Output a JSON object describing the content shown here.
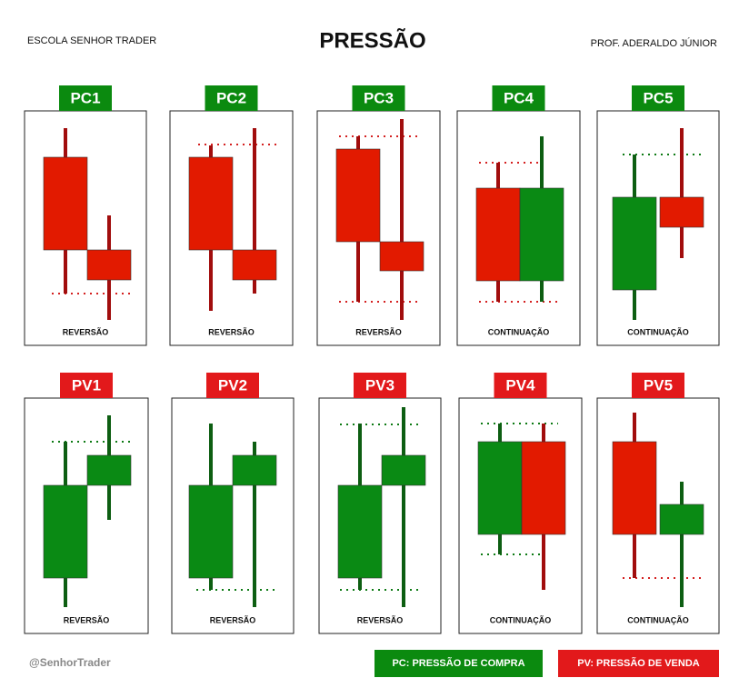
{
  "header": {
    "left": "ESCOLA SENHOR TRADER",
    "title": "PRESSÃO",
    "right": "PROF. ADERALDO JÚNIOR"
  },
  "panels": [
    {
      "label": "PC1",
      "caption": "REVERSÃO"
    },
    {
      "label": "PC2",
      "caption": "REVERSÃO"
    },
    {
      "label": "PC3",
      "caption": "REVERSÃO"
    },
    {
      "label": "PC4",
      "caption": "CONTINUAÇÃO"
    },
    {
      "label": "PC5",
      "caption": "CONTINUAÇÃO"
    },
    {
      "label": "PV1",
      "caption": "REVERSÃO"
    },
    {
      "label": "PV2",
      "caption": "REVERSÃO"
    },
    {
      "label": "PV3",
      "caption": "REVERSÃO"
    },
    {
      "label": "PV4",
      "caption": "CONTINUAÇÃO"
    },
    {
      "label": "PV5",
      "caption": "CONTINUAÇÃO"
    }
  ],
  "footer": {
    "handle": "@SenhorTrader",
    "legend": [
      "PC: PRESSÃO DE COMPRA",
      "PV: PRESSÃO DE VENDA"
    ]
  }
}
